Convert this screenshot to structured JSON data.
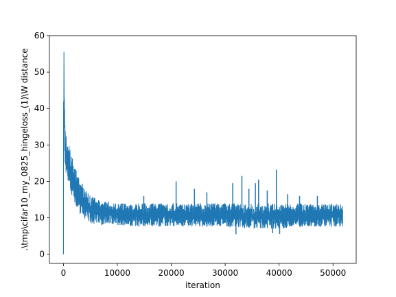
{
  "chart_data": {
    "type": "line",
    "xlabel": "iteration",
    "ylabel": ".\\tmp\\cifar10_my_0825_hingeloss_(1)\\W distance",
    "xlim": [
      -2600,
      54300
    ],
    "ylim": [
      -2.5,
      60
    ],
    "x_ticks": [
      0,
      10000,
      20000,
      30000,
      40000,
      50000
    ],
    "y_ticks": [
      0,
      10,
      20,
      30,
      40,
      50,
      60
    ],
    "grid": false,
    "series": [
      {
        "color": "#1f77b4",
        "x_end": 51800,
        "envelope": {
          "x": [
            0,
            100,
            200,
            400,
            700,
            1000,
            1500,
            2000,
            3000,
            4000,
            5000,
            7000,
            10000,
            15000,
            20000,
            25000,
            30000,
            35000,
            40000,
            45000,
            50000,
            51800
          ],
          "low": [
            0,
            40,
            28,
            22,
            20,
            18,
            16,
            14,
            11,
            9.5,
            8.5,
            8,
            8,
            7.5,
            7.5,
            7.5,
            7.5,
            7,
            7,
            7.5,
            7.5,
            7.5
          ],
          "high": [
            54,
            57,
            45,
            36,
            32,
            30,
            27,
            25,
            21,
            18,
            16,
            15,
            14,
            14,
            14,
            14,
            14,
            14,
            14,
            14,
            14,
            14
          ]
        },
        "spikes": [
          {
            "x": 14900,
            "y": 16
          },
          {
            "x": 20900,
            "y": 20
          },
          {
            "x": 24300,
            "y": 18
          },
          {
            "x": 26600,
            "y": 17
          },
          {
            "x": 31400,
            "y": 19.5
          },
          {
            "x": 33100,
            "y": 21.5
          },
          {
            "x": 34400,
            "y": 18
          },
          {
            "x": 35600,
            "y": 19.5
          },
          {
            "x": 36200,
            "y": 20.5
          },
          {
            "x": 37800,
            "y": 17.5
          },
          {
            "x": 39500,
            "y": 23.2
          },
          {
            "x": 41600,
            "y": 16.5
          },
          {
            "x": 43800,
            "y": 16
          },
          {
            "x": 47100,
            "y": 16
          }
        ],
        "dips": [
          {
            "x": 32000,
            "y": 5.5
          },
          {
            "x": 38800,
            "y": 5.8
          },
          {
            "x": 40100,
            "y": 5.6
          }
        ]
      }
    ]
  }
}
